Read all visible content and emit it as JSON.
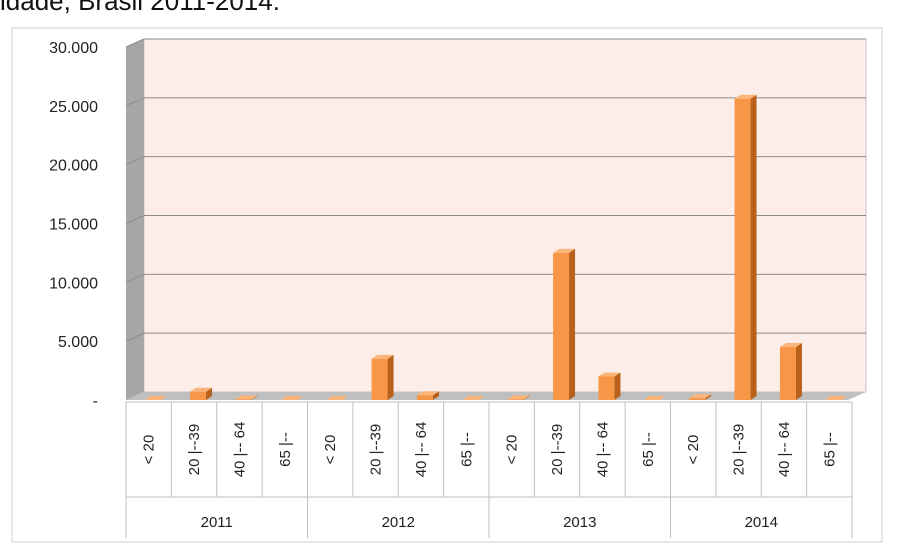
{
  "page": {
    "title": "idade, Brasil 2011-2014."
  },
  "chart_data": {
    "type": "bar",
    "groups": [
      "2011",
      "2012",
      "2013",
      "2014"
    ],
    "categories": [
      "< 20",
      "20 |--39",
      "40 |-- 64",
      "65 |--"
    ],
    "values": [
      [
        0,
        700,
        50,
        0
      ],
      [
        0,
        3500,
        400,
        0
      ],
      [
        50,
        12500,
        2000,
        0
      ],
      [
        150,
        25600,
        4500,
        0
      ]
    ],
    "ylim": [
      0,
      30000
    ],
    "yticks": [
      0,
      5000,
      10000,
      15000,
      20000,
      25000,
      30000
    ],
    "ytick_labels": [
      "-",
      "5.000",
      "10.000",
      "15.000",
      "20.000",
      "25.000",
      "30.000"
    ],
    "xlabel": "",
    "ylabel": "",
    "grid": true,
    "colors": {
      "bar_front": "#F79646",
      "bar_side": "#B9601A",
      "bar_top": "#FBB47A",
      "plot_bg": "#FDEDE8",
      "back_wall_edge": "#C8C8C8",
      "left_wall": "#A6A6A6",
      "floor": "#BFBFBF",
      "gridline": "#8C8C8C"
    }
  }
}
